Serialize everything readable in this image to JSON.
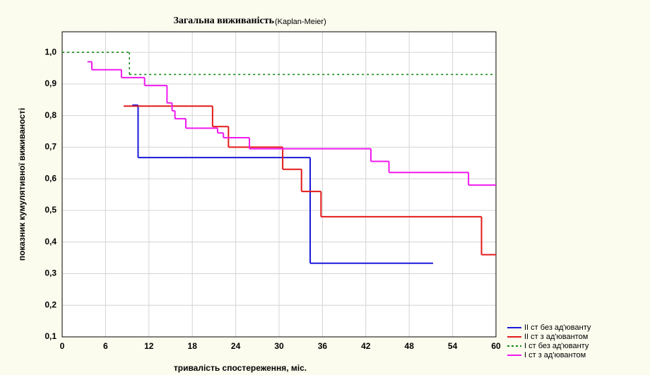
{
  "chart_data": {
    "type": "step",
    "title": "Загальна виживаність",
    "subtitle": "(Kaplan-Meier)",
    "x_label": "тривалість спостереження, міс.",
    "y_label": "показник кумулятивної виживаності",
    "xlim": [
      0,
      60
    ],
    "xticks": [
      0,
      6,
      12,
      18,
      24,
      30,
      36,
      42,
      48,
      54,
      60
    ],
    "ylim": [
      0.1,
      1.065
    ],
    "yticks": [
      {
        "value": 0.1,
        "label": "0,1"
      },
      {
        "value": 0.2,
        "label": "0,2"
      },
      {
        "value": 0.3,
        "label": "0,3"
      },
      {
        "value": 0.4,
        "label": "0,4"
      },
      {
        "value": 0.5,
        "label": "0,5"
      },
      {
        "value": 0.6,
        "label": "0,6"
      },
      {
        "value": 0.7,
        "label": "0,7"
      },
      {
        "value": 0.8,
        "label": "0,8"
      },
      {
        "value": 0.9,
        "label": "0,9"
      },
      {
        "value": 1.0,
        "label": "1,0"
      }
    ],
    "grid": true,
    "series": [
      {
        "name": "II ст без ад'юванту",
        "color": "#1a1adc",
        "dash": false,
        "x": [
          9.7,
          10.5,
          34.3,
          51.3
        ],
        "values": [
          0.833,
          0.667,
          0.333,
          0.333
        ]
      },
      {
        "name": "II ст з ад'ювантом",
        "color": "#e41a1a",
        "dash": false,
        "x": [
          8.5,
          20.8,
          23.0,
          30.5,
          33.1,
          35.8,
          58.0,
          60
        ],
        "values": [
          0.83,
          0.765,
          0.7,
          0.63,
          0.56,
          0.48,
          0.36,
          0.36
        ]
      },
      {
        "name": "I ст без ад'юванту",
        "color": "#138a13",
        "dash": true,
        "x": [
          0,
          9.3,
          60
        ],
        "values": [
          1.0,
          0.93,
          0.93
        ]
      },
      {
        "name": "I ст з ад'ювантом",
        "color": "#f01af0",
        "dash": false,
        "x": [
          3.5,
          4.1,
          8.2,
          11.4,
          14.5,
          15.2,
          15.6,
          17.1,
          21.5,
          22.3,
          25.9,
          42.7,
          45.2,
          56.2,
          60
        ],
        "values": [
          0.97,
          0.945,
          0.92,
          0.895,
          0.84,
          0.815,
          0.79,
          0.76,
          0.745,
          0.73,
          0.695,
          0.655,
          0.62,
          0.58,
          0.58
        ]
      }
    ]
  }
}
